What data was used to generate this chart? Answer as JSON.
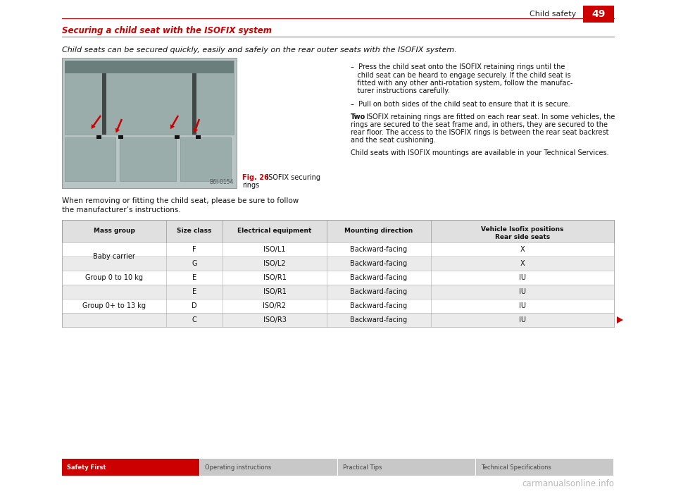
{
  "page_bg": "#ffffff",
  "header_line_color": "#cc0000",
  "header_text": "Child safety",
  "header_page": "49",
  "header_box_color": "#cc0000",
  "section_title": "Securing a child seat with the ISOFIX system",
  "section_title_color": "#cc0000",
  "section_underline_color": "#555555",
  "intro_text": "Child seats can be secured quickly, easily and safely on the rear outer seats with the ISOFIX system.",
  "fig_caption_label": "Fig. 26",
  "fig_caption_rest": "  ISOFIX securing",
  "fig_caption_line2": "rings",
  "fig_caption_color": "#cc0000",
  "fig_id": "B6l-0154",
  "bullet1_lines": [
    "–  Press the child seat onto the ISOFIX retaining rings until the",
    "   child seat can be heard to engage securely. If the child seat is",
    "   fitted with any other anti-rotation system, follow the manufac-",
    "   turer instructions carefully."
  ],
  "bullet2": "–  Pull on both sides of the child seat to ensure that it is secure.",
  "para_two_lines": [
    "ISOFIX retaining rings are fitted on each rear seat. In some vehicles, the",
    "rings are secured to the seat frame and, in others, they are secured to the",
    "rear floor. The access to the ISOFIX rings is between the rear seat backrest",
    "and the seat cushioning."
  ],
  "para_last": "Child seats with ISOFIX mountings are available in your Technical Services.",
  "when_text_line1": "When removing or fitting the child seat, please be sure to follow",
  "when_text_line2": "the manufacturer’s instructions.",
  "table_header_bg": "#e0e0e0",
  "table_row_alt_bg": "#ebebeb",
  "table_row_bg": "#ffffff",
  "table_headers": [
    "Mass group",
    "Size class",
    "Electrical equipment",
    "Mounting direction",
    "Vehicle Isofix positions\nRear side seats"
  ],
  "table_rows": [
    [
      "Baby carrier",
      "F",
      "ISO/L1",
      "Backward-facing",
      "X"
    ],
    [
      "Baby carrier",
      "G",
      "ISO/L2",
      "Backward-facing",
      "X"
    ],
    [
      "Group 0 to 10 kg",
      "E",
      "ISO/R1",
      "Backward-facing",
      "IU"
    ],
    [
      "Group 0+ to 13 kg",
      "E",
      "ISO/R1",
      "Backward-facing",
      "IU"
    ],
    [
      "Group 0+ to 13 kg",
      "D",
      "ISO/R2",
      "Backward-facing",
      "IU"
    ],
    [
      "Group 0+ to 13 kg",
      "C",
      "ISO/R3",
      "Backward-facing",
      "IU"
    ]
  ],
  "footer_tabs": [
    "Safety First",
    "Operating instructions",
    "Practical Tips",
    "Technical Specifications"
  ],
  "footer_active_bg": "#cc0000",
  "footer_inactive_bg": "#c8c8c8",
  "footer_active_text": "#ffffff",
  "footer_inactive_text": "#444444",
  "watermark": "carmanualsonline.info",
  "img_bg": "#b8c5c4",
  "seat_color": "#9aadab",
  "seat_dark": "#7a9490",
  "arrow_color": "#cc0000"
}
